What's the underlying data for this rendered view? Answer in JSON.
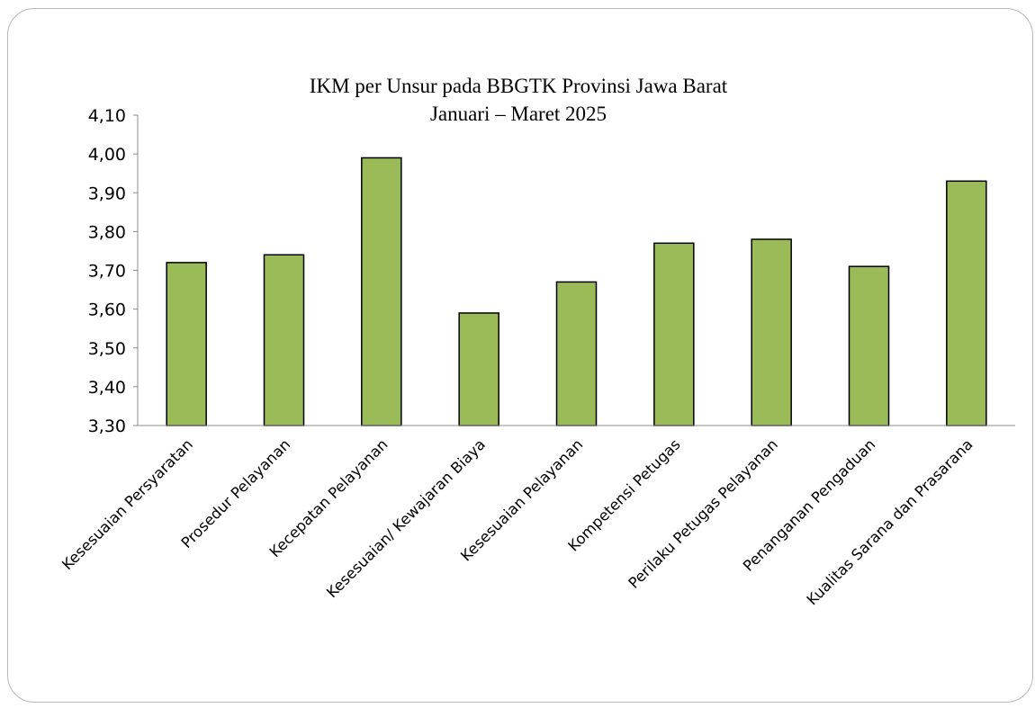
{
  "chart_data": {
    "type": "bar",
    "title": "IKM per Unsur pada BBGTK Provinsi Jawa Barat",
    "subtitle": "Januari – Maret 2025",
    "xlabel": "",
    "ylabel": "",
    "ylim": [
      3.3,
      4.1
    ],
    "yticks": [
      "3,30",
      "3,40",
      "3,50",
      "3,60",
      "3,70",
      "3,80",
      "3,90",
      "4,00",
      "4,10"
    ],
    "ytick_values": [
      3.3,
      3.4,
      3.5,
      3.6,
      3.7,
      3.8,
      3.9,
      4.0,
      4.1
    ],
    "grid": false,
    "legend": "none",
    "bar_color": "#9bbb59",
    "bar_edge_color": "#000000",
    "categories": [
      "Kesesuaian Persyaratan",
      "Prosedur Pelayanan",
      "Kecepatan Pelayanan",
      "Kesesuaian/ Kewajaran Biaya",
      "Kesesuaian Pelayanan",
      "Kompetensi Petugas",
      "Perilaku Petugas Pelayanan",
      "Penanganan Pengaduan",
      "Kualitas Sarana dan Prasarana"
    ],
    "values": [
      3.72,
      3.74,
      3.99,
      3.59,
      3.67,
      3.77,
      3.78,
      3.71,
      3.93
    ]
  }
}
